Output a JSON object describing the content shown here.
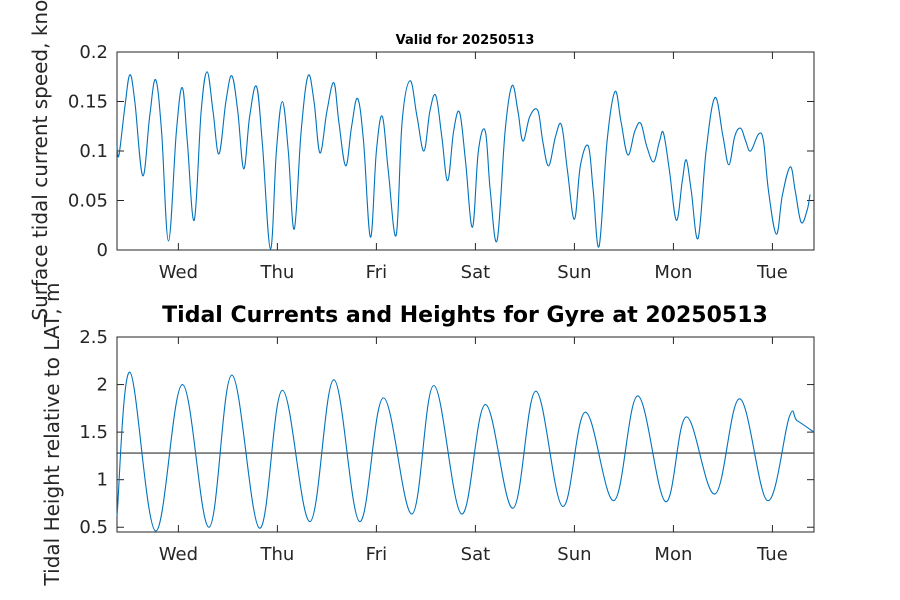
{
  "chart_data": [
    {
      "type": "line",
      "title": "Valid for 20250513",
      "xlabel": "",
      "ylabel": "Surface tidal current speed, knots",
      "ylim": [
        0,
        0.2
      ],
      "yticks": [
        0,
        0.05,
        0.1,
        0.15,
        0.2
      ],
      "ytick_labels": [
        "0",
        "0.05",
        "0.1",
        "0.15",
        "0.2"
      ],
      "xlim": [
        -0.62,
        6.42
      ],
      "xticks": [
        0,
        1,
        2,
        3,
        4,
        5,
        6
      ],
      "xtick_labels": [
        "Wed",
        "Thu",
        "Fri",
        "Sat",
        "Sun",
        "Mon",
        "Tue"
      ],
      "grid": false,
      "color": "#0072BD",
      "series": [
        {
          "values": [
            [
              -0.62,
              0.105
            ],
            [
              -0.6,
              0.096
            ],
            [
              -0.54,
              0.145
            ],
            [
              -0.49,
              0.177
            ],
            [
              -0.44,
              0.15
            ],
            [
              -0.36,
              0.075
            ],
            [
              -0.29,
              0.135
            ],
            [
              -0.23,
              0.172
            ],
            [
              -0.17,
              0.12
            ],
            [
              -0.1,
              0.009
            ],
            [
              -0.02,
              0.12
            ],
            [
              0.04,
              0.164
            ],
            [
              0.09,
              0.11
            ],
            [
              0.16,
              0.03
            ],
            [
              0.23,
              0.14
            ],
            [
              0.29,
              0.18
            ],
            [
              0.35,
              0.14
            ],
            [
              0.41,
              0.097
            ],
            [
              0.48,
              0.15
            ],
            [
              0.54,
              0.176
            ],
            [
              0.6,
              0.14
            ],
            [
              0.66,
              0.082
            ],
            [
              0.72,
              0.135
            ],
            [
              0.79,
              0.165
            ],
            [
              0.85,
              0.105
            ],
            [
              0.93,
              0.001
            ],
            [
              0.99,
              0.1
            ],
            [
              1.05,
              0.15
            ],
            [
              1.11,
              0.1
            ],
            [
              1.17,
              0.021
            ],
            [
              1.24,
              0.12
            ],
            [
              1.31,
              0.176
            ],
            [
              1.37,
              0.15
            ],
            [
              1.43,
              0.098
            ],
            [
              1.5,
              0.14
            ],
            [
              1.57,
              0.169
            ],
            [
              1.62,
              0.13
            ],
            [
              1.69,
              0.085
            ],
            [
              1.75,
              0.125
            ],
            [
              1.81,
              0.153
            ],
            [
              1.87,
              0.11
            ],
            [
              1.94,
              0.013
            ],
            [
              2.0,
              0.1
            ],
            [
              2.06,
              0.135
            ],
            [
              2.12,
              0.08
            ],
            [
              2.2,
              0.015
            ],
            [
              2.26,
              0.13
            ],
            [
              2.34,
              0.171
            ],
            [
              2.41,
              0.135
            ],
            [
              2.48,
              0.1
            ],
            [
              2.54,
              0.14
            ],
            [
              2.6,
              0.156
            ],
            [
              2.66,
              0.115
            ],
            [
              2.72,
              0.07
            ],
            [
              2.78,
              0.12
            ],
            [
              2.84,
              0.139
            ],
            [
              2.9,
              0.09
            ],
            [
              2.97,
              0.023
            ],
            [
              3.03,
              0.1
            ],
            [
              3.1,
              0.12
            ],
            [
              3.15,
              0.06
            ],
            [
              3.22,
              0.01
            ],
            [
              3.3,
              0.12
            ],
            [
              3.37,
              0.166
            ],
            [
              3.43,
              0.14
            ],
            [
              3.48,
              0.11
            ],
            [
              3.55,
              0.135
            ],
            [
              3.63,
              0.141
            ],
            [
              3.68,
              0.11
            ],
            [
              3.74,
              0.085
            ],
            [
              3.81,
              0.115
            ],
            [
              3.87,
              0.126
            ],
            [
              3.93,
              0.08
            ],
            [
              4.0,
              0.031
            ],
            [
              4.06,
              0.085
            ],
            [
              4.14,
              0.105
            ],
            [
              4.19,
              0.06
            ],
            [
              4.25,
              0.004
            ],
            [
              4.33,
              0.11
            ],
            [
              4.41,
              0.16
            ],
            [
              4.47,
              0.13
            ],
            [
              4.54,
              0.096
            ],
            [
              4.61,
              0.12
            ],
            [
              4.67,
              0.128
            ],
            [
              4.73,
              0.105
            ],
            [
              4.8,
              0.089
            ],
            [
              4.86,
              0.11
            ],
            [
              4.9,
              0.118
            ],
            [
              4.96,
              0.08
            ],
            [
              5.03,
              0.03
            ],
            [
              5.09,
              0.07
            ],
            [
              5.13,
              0.091
            ],
            [
              5.18,
              0.06
            ],
            [
              5.25,
              0.012
            ],
            [
              5.33,
              0.1
            ],
            [
              5.42,
              0.154
            ],
            [
              5.5,
              0.115
            ],
            [
              5.56,
              0.086
            ],
            [
              5.62,
              0.115
            ],
            [
              5.68,
              0.123
            ],
            [
              5.73,
              0.11
            ],
            [
              5.78,
              0.1
            ],
            [
              5.86,
              0.117
            ],
            [
              5.91,
              0.11
            ],
            [
              5.96,
              0.06
            ],
            [
              6.04,
              0.016
            ],
            [
              6.1,
              0.055
            ],
            [
              6.18,
              0.084
            ],
            [
              6.23,
              0.06
            ],
            [
              6.29,
              0.028
            ],
            [
              6.35,
              0.04
            ],
            [
              6.38,
              0.056
            ]
          ]
        }
      ]
    },
    {
      "type": "line",
      "title": "Tidal Currents and Heights for Gyre at 20250513",
      "xlabel": "",
      "ylabel": "Tidal Height relative to LAT, m",
      "ylim": [
        0.45,
        2.5
      ],
      "yticks": [
        0.5,
        1,
        1.5,
        2,
        2.5
      ],
      "ytick_labels": [
        "0.5",
        "1",
        "1.5",
        "2",
        "2.5"
      ],
      "xlim": [
        -0.62,
        6.42
      ],
      "xticks": [
        0,
        1,
        2,
        3,
        4,
        5,
        6
      ],
      "xtick_labels": [
        "Wed",
        "Thu",
        "Fri",
        "Sat",
        "Sun",
        "Mon",
        "Tue"
      ],
      "grid": false,
      "color": "#0072BD",
      "reference_line": {
        "y": 1.28,
        "color": "#333333"
      },
      "series": [
        {
          "values": [
            [
              -0.62,
              0.62
            ],
            [
              -0.49,
              2.13
            ],
            [
              -0.23,
              0.46
            ],
            [
              0.04,
              2.0
            ],
            [
              0.31,
              0.5
            ],
            [
              0.54,
              2.1
            ],
            [
              0.82,
              0.49
            ],
            [
              1.05,
              1.94
            ],
            [
              1.33,
              0.56
            ],
            [
              1.57,
              2.05
            ],
            [
              1.83,
              0.56
            ],
            [
              2.07,
              1.86
            ],
            [
              2.36,
              0.64
            ],
            [
              2.58,
              1.99
            ],
            [
              2.86,
              0.64
            ],
            [
              3.1,
              1.79
            ],
            [
              3.38,
              0.7
            ],
            [
              3.61,
              1.93
            ],
            [
              3.88,
              0.72
            ],
            [
              4.11,
              1.71
            ],
            [
              4.4,
              0.78
            ],
            [
              4.64,
              1.88
            ],
            [
              4.92,
              0.77
            ],
            [
              5.13,
              1.66
            ],
            [
              5.42,
              0.85
            ],
            [
              5.67,
              1.85
            ],
            [
              5.95,
              0.78
            ],
            [
              6.17,
              1.66
            ],
            [
              6.25,
              1.62
            ],
            [
              6.42,
              1.5
            ]
          ]
        }
      ]
    }
  ]
}
